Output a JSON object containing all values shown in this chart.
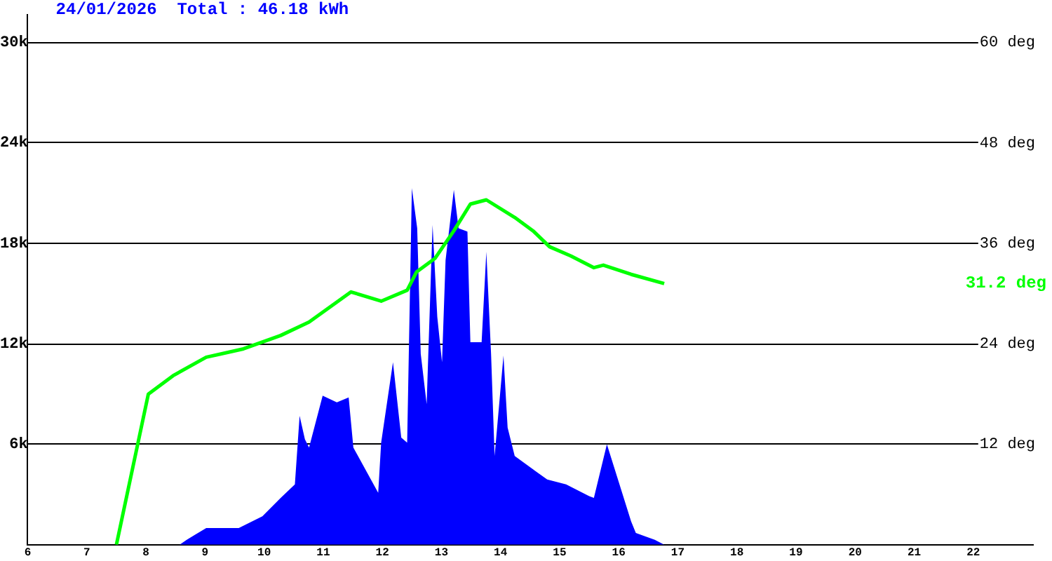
{
  "chart_data": {
    "type": "area",
    "title": "24/01/2026  Total : 46.18 kWh",
    "annotations": [
      "31.2 deg"
    ],
    "grid": "y",
    "xlim": [
      6,
      23
    ],
    "xticks": [
      6,
      7,
      8,
      9,
      10,
      11,
      12,
      13,
      14,
      15,
      16,
      17,
      18,
      19,
      20,
      21,
      22
    ],
    "ylim": [
      0,
      31700
    ],
    "yticks": [
      {
        "value": 6000,
        "label": "6k"
      },
      {
        "value": 12000,
        "label": "12k"
      },
      {
        "value": 18000,
        "label": "18k"
      },
      {
        "value": 24000,
        "label": "24k"
      },
      {
        "value": 30000,
        "label": "30k"
      }
    ],
    "y2lim": [
      0,
      63.4
    ],
    "y2ticks": [
      {
        "value": 12,
        "label": "12 deg"
      },
      {
        "value": 24,
        "label": "24 deg"
      },
      {
        "value": 36,
        "label": "36 deg"
      },
      {
        "value": 48,
        "label": "48 deg"
      },
      {
        "value": 60,
        "label": "60 deg"
      }
    ],
    "series": [
      {
        "color": "#0000ff",
        "x": [
          6,
          8.57,
          8.69,
          9.02,
          9.57,
          9.97,
          10.28,
          10.52,
          10.6,
          10.69,
          10.76,
          10.99,
          11.23,
          11.43,
          11.51,
          11.93,
          11.98,
          12.18,
          12.32,
          12.42,
          12.5,
          12.59,
          12.65,
          12.75,
          12.85,
          12.93,
          13.01,
          13.07,
          13.21,
          13.29,
          13.44,
          13.49,
          13.68,
          13.76,
          13.84,
          13.9,
          14.05,
          14.12,
          14.24,
          14.55,
          14.79,
          15.11,
          15.5,
          15.58,
          15.8,
          16.21,
          16.29,
          16.61,
          16.77
        ],
        "values": [
          0,
          0,
          300,
          1000,
          1000,
          1700,
          2800,
          3600,
          7700,
          6300,
          5800,
          8900,
          8500,
          8800,
          5800,
          3100,
          6100,
          10900,
          6400,
          6100,
          21300,
          18900,
          11400,
          8400,
          19100,
          13600,
          10900,
          17000,
          21200,
          18900,
          18700,
          12100,
          12100,
          17500,
          11400,
          5300,
          11300,
          7000,
          5300,
          4500,
          3900,
          3600,
          2900,
          2800,
          6000,
          1400,
          700,
          300,
          0
        ]
      },
      {
        "type": "line",
        "axis": "y2",
        "color": "#00ff00",
        "x": [
          7.5,
          8.04,
          8.46,
          9.02,
          9.65,
          10.28,
          10.76,
          11.47,
          11.98,
          12.42,
          12.58,
          12.89,
          13.21,
          13.49,
          13.76,
          14.24,
          14.55,
          14.83,
          15.19,
          15.58,
          15.74,
          16.21,
          16.77
        ],
        "values": [
          0,
          18.0,
          20.2,
          22.4,
          23.4,
          25.0,
          26.6,
          30.2,
          29.1,
          30.4,
          32.6,
          34.2,
          37.5,
          40.7,
          41.2,
          39.1,
          37.5,
          35.6,
          34.5,
          33.1,
          33.4,
          32.3,
          31.2
        ]
      }
    ]
  }
}
